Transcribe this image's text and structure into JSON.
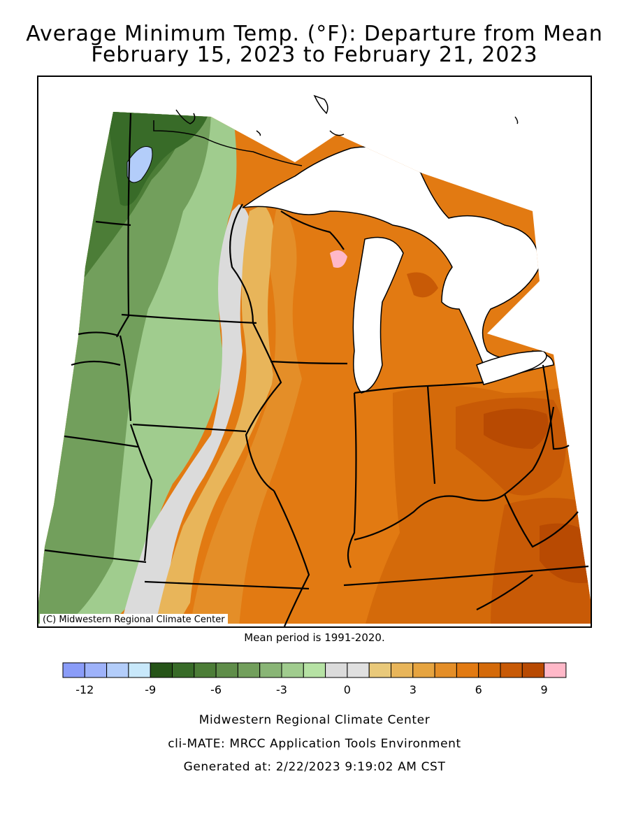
{
  "title_line1": "Average Minimum Temp. (°F): Departure from Mean",
  "title_line2": "February 15, 2023 to February 21, 2023",
  "copyright": "(C) Midwestern Regional Climate Center",
  "mean_period": "Mean period is 1991-2020.",
  "legend": {
    "colors": [
      "#8a9cf8",
      "#9eb2fa",
      "#b3cdfa",
      "#c8e8fa",
      "#265418",
      "#386b28",
      "#4c7d37",
      "#5f8d49",
      "#729f5c",
      "#89b576",
      "#a0cc8e",
      "#b6e2a4",
      "#dbdbdb",
      "#e0e0e0",
      "#e9c97a",
      "#e8b55a",
      "#e6a440",
      "#e48e28",
      "#e27a12",
      "#d46a0a",
      "#c85a06",
      "#b84a02",
      "#ffb8c8"
    ],
    "tick_labels": [
      "-12",
      "-9",
      "-6",
      "-3",
      "0",
      "3",
      "6",
      "9"
    ]
  },
  "footer": {
    "line1": "Midwestern Regional Climate Center",
    "line2": "cli-MATE: MRCC Application Tools Environment",
    "line3": "Generated at: 2/22/2023 9:19:02 AM CST"
  }
}
